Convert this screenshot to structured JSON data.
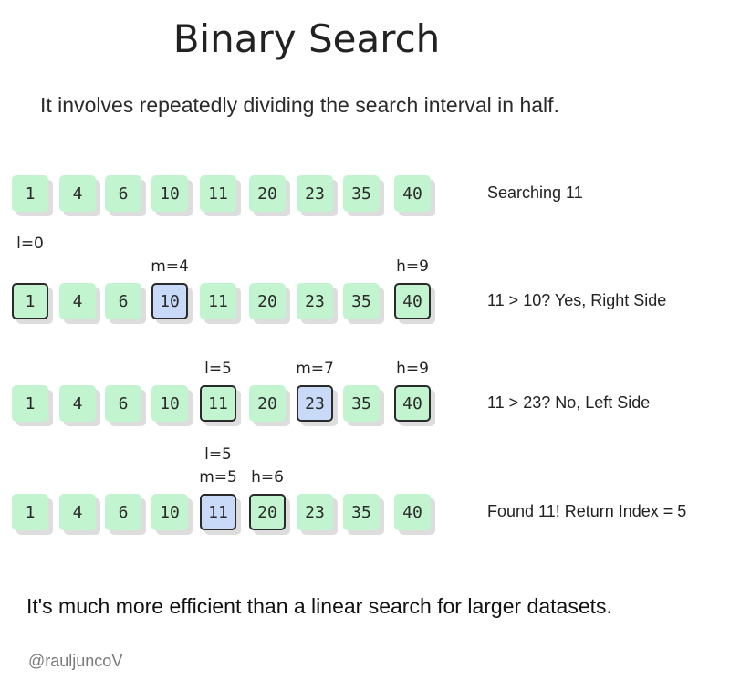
{
  "title": "Binary Search",
  "subtitle": "It involves repeatedly dividing the search interval in half.",
  "array": [
    1,
    4,
    6,
    10,
    11,
    20,
    23,
    35,
    40
  ],
  "rows": [
    {
      "note": "Searching 11",
      "marked": [],
      "mid": null,
      "labels": []
    },
    {
      "note": "11 > 10? Yes, Right Side",
      "marked": [
        0,
        3,
        8
      ],
      "mid": 3,
      "labels": [
        {
          "text": "l=0",
          "index": 0,
          "level": 2
        },
        {
          "text": "m=4",
          "index": 3,
          "level": 1
        },
        {
          "text": "h=9",
          "index": 8,
          "level": 1
        }
      ]
    },
    {
      "note": "11 > 23? No, Left Side",
      "marked": [
        4,
        6,
        8
      ],
      "mid": 6,
      "labels": [
        {
          "text": "l=5",
          "index": 4,
          "level": 1
        },
        {
          "text": "m=7",
          "index": 6,
          "level": 1
        },
        {
          "text": "h=9",
          "index": 8,
          "level": 1
        }
      ]
    },
    {
      "note": "Found 11! Return Index = 5",
      "marked": [
        4,
        5
      ],
      "mid": 4,
      "labels": [
        {
          "text": "l=5",
          "index": 4,
          "level": 2
        },
        {
          "text": "m=5",
          "index": 4,
          "level": 1
        },
        {
          "text": "h=6",
          "index": 5,
          "level": 1
        }
      ]
    }
  ],
  "footer": "It's much more efficient than a linear search for larger datasets.",
  "credit": "@rauljuncoV"
}
